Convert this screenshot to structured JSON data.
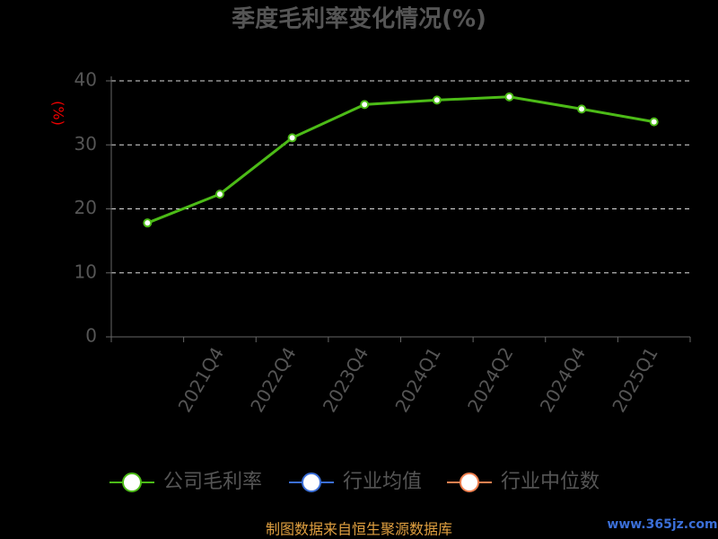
{
  "chart_data": {
    "type": "line",
    "title": "季度毛利率变化情况(%)",
    "y_label": "(%)",
    "categories": [
      null,
      "2021Q4",
      "2022Q4",
      "2023Q4",
      "2024Q1",
      "2024Q2",
      "2024Q4",
      "2025Q1"
    ],
    "series": [
      {
        "name": "公司毛利率",
        "color": "#4cbb17",
        "values": [
          17.8,
          22.3,
          31.1,
          36.3,
          37.0,
          37.5,
          35.6,
          33.6
        ]
      },
      {
        "name": "行业均值",
        "color": "#3b6fd8",
        "values": [
          null,
          null,
          null,
          null,
          null,
          null,
          null,
          null
        ]
      },
      {
        "name": "行业中位数",
        "color": "#f08050",
        "values": [
          null,
          null,
          null,
          null,
          null,
          null,
          null,
          null
        ]
      }
    ],
    "ylim": [
      0,
      40
    ],
    "yticks": [
      0,
      10,
      20,
      30,
      40
    ],
    "grid": true,
    "footer": "制图数据来自恒生聚源数据库",
    "watermark": "www.365jz.com"
  }
}
